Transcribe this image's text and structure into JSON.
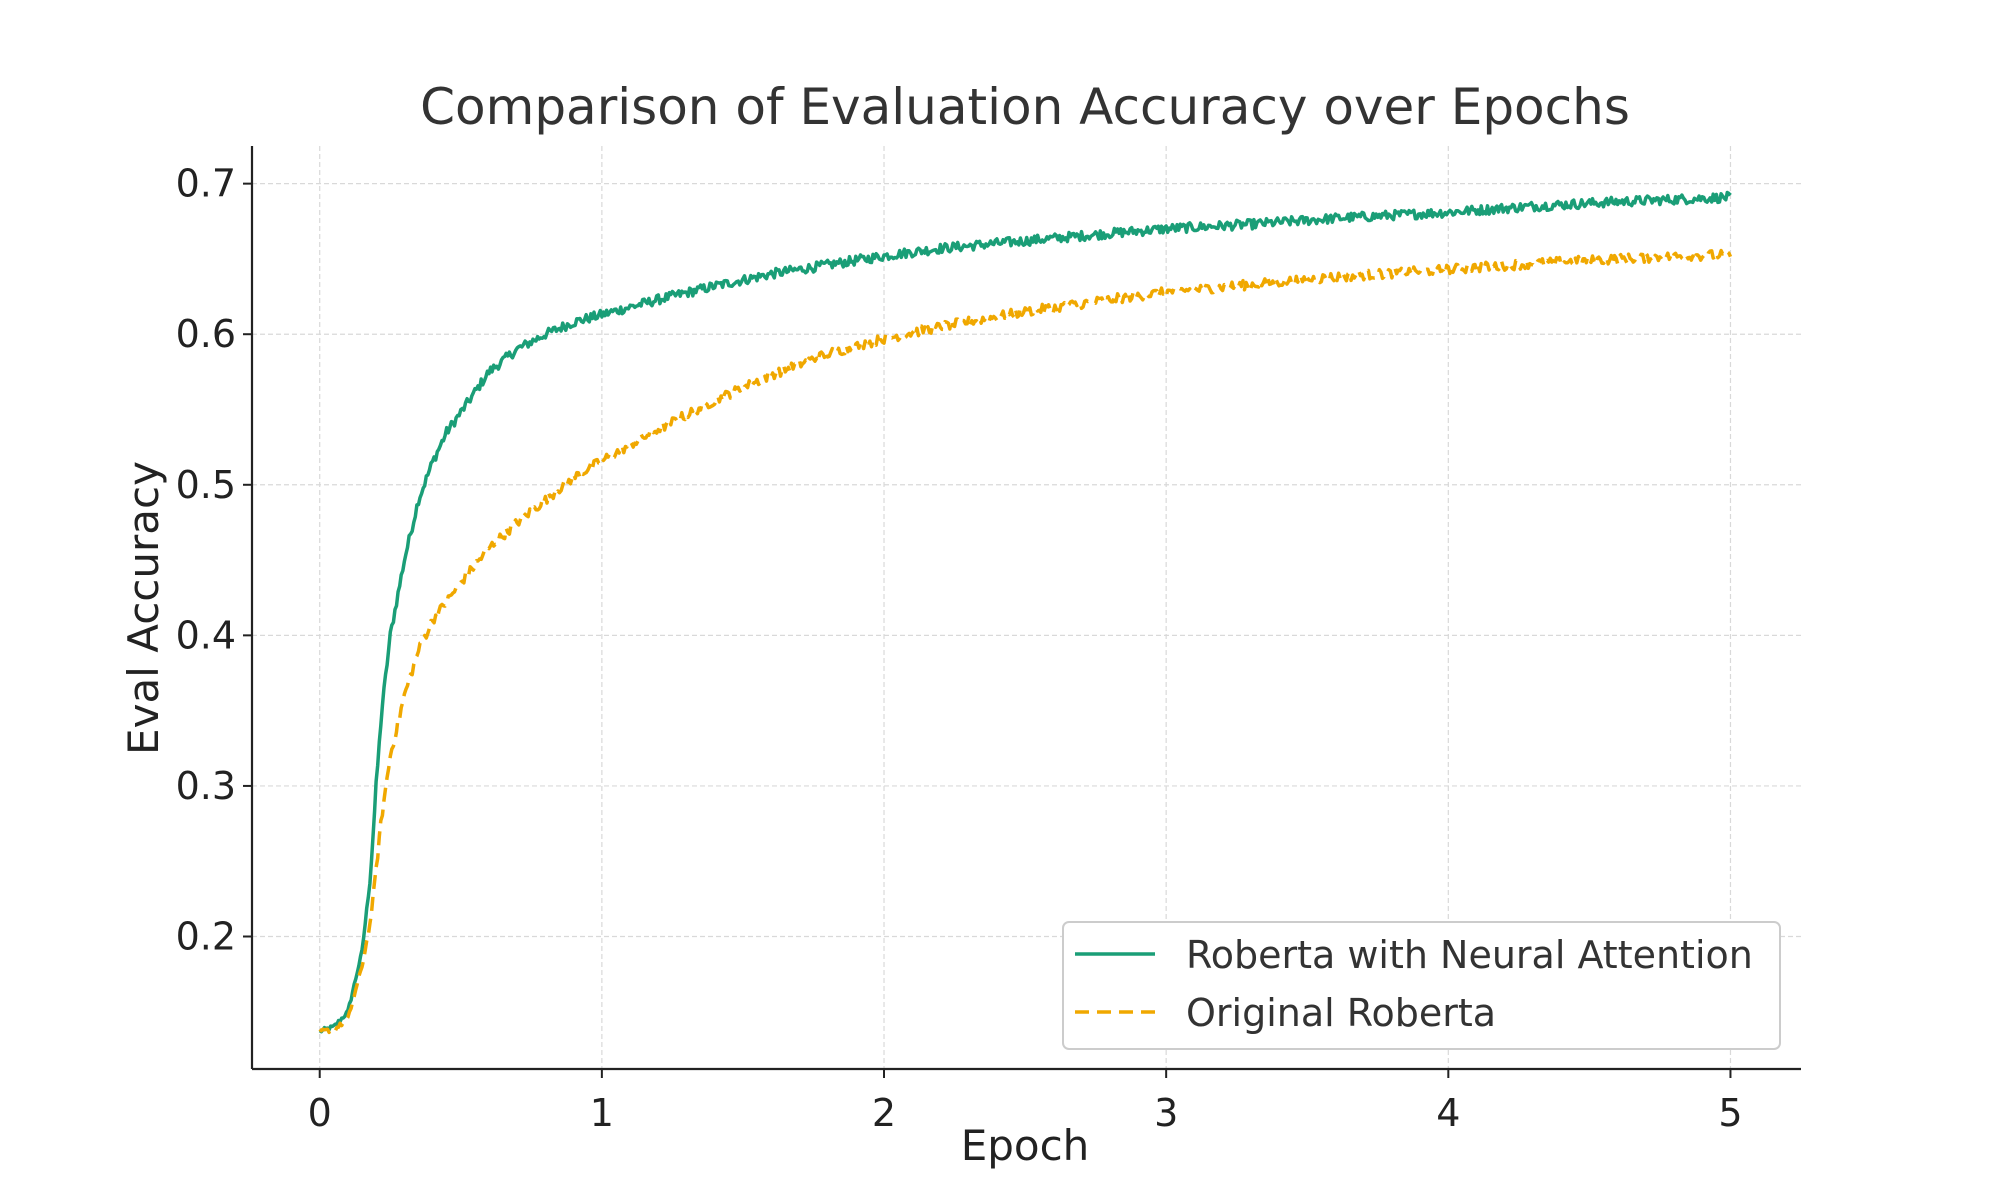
{
  "chart_data": {
    "type": "line",
    "title": "Comparison of Evaluation Accuracy over Epochs",
    "xlabel": "Epoch",
    "ylabel": "Eval Accuracy",
    "xlim": [
      -0.24,
      5.25
    ],
    "ylim": [
      0.112,
      0.725
    ],
    "xticks": [
      0,
      1,
      2,
      3,
      4,
      5
    ],
    "xtick_labels": [
      "0",
      "1",
      "2",
      "3",
      "4",
      "5"
    ],
    "yticks": [
      0.2,
      0.3,
      0.4,
      0.5,
      0.6,
      0.7
    ],
    "ytick_labels": [
      "0.2",
      "0.3",
      "0.4",
      "0.5",
      "0.6",
      "0.7"
    ],
    "grid": true,
    "legend_position": "lower-right",
    "series": [
      {
        "name": "Roberta with Neural Attention",
        "color": "#1a9e77",
        "line_style": "solid",
        "x": [
          0.0,
          0.05,
          0.1,
          0.15,
          0.18,
          0.2,
          0.22,
          0.25,
          0.28,
          0.3,
          0.35,
          0.4,
          0.45,
          0.5,
          0.6,
          0.7,
          0.8,
          0.9,
          1.0,
          1.2,
          1.4,
          1.6,
          1.8,
          2.0,
          2.2,
          2.5,
          2.8,
          3.0,
          3.3,
          3.6,
          4.0,
          4.3,
          4.6,
          5.0
        ],
        "y": [
          0.137,
          0.14,
          0.15,
          0.19,
          0.24,
          0.3,
          0.35,
          0.4,
          0.43,
          0.45,
          0.49,
          0.515,
          0.535,
          0.548,
          0.575,
          0.59,
          0.6,
          0.608,
          0.613,
          0.623,
          0.632,
          0.64,
          0.646,
          0.652,
          0.657,
          0.662,
          0.667,
          0.67,
          0.673,
          0.677,
          0.681,
          0.685,
          0.688,
          0.691
        ]
      },
      {
        "name": "Original Roberta",
        "color": "#f0a800",
        "line_style": "dashed",
        "x": [
          0.0,
          0.05,
          0.1,
          0.15,
          0.18,
          0.2,
          0.22,
          0.25,
          0.3,
          0.35,
          0.4,
          0.5,
          0.6,
          0.7,
          0.8,
          0.9,
          1.0,
          1.2,
          1.4,
          1.6,
          1.8,
          2.0,
          2.2,
          2.5,
          2.8,
          3.0,
          3.3,
          3.6,
          4.0,
          4.3,
          4.6,
          5.0
        ],
        "y": [
          0.137,
          0.138,
          0.145,
          0.18,
          0.21,
          0.245,
          0.28,
          0.32,
          0.36,
          0.39,
          0.41,
          0.435,
          0.458,
          0.475,
          0.49,
          0.505,
          0.516,
          0.537,
          0.556,
          0.573,
          0.587,
          0.597,
          0.605,
          0.615,
          0.623,
          0.628,
          0.633,
          0.638,
          0.643,
          0.647,
          0.65,
          0.653
        ]
      }
    ]
  }
}
